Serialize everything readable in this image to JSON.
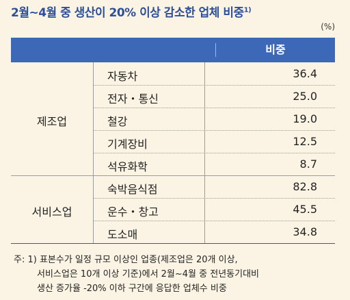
{
  "title": "2월~4월 중 생산이 20% 이상 감소한 업체 비중",
  "title_sup": "1)",
  "unit": "(%)",
  "chart_data": {
    "type": "table",
    "columns": [
      "",
      "",
      "비중"
    ],
    "groups": [
      {
        "name": "제조업",
        "rows": [
          {
            "category": "자동차",
            "value": "36.4"
          },
          {
            "category": "전자・통신",
            "value": "25.0"
          },
          {
            "category": "철강",
            "value": "19.0"
          },
          {
            "category": "기계장비",
            "value": "12.5"
          },
          {
            "category": "석유화학",
            "value": "8.7"
          }
        ]
      },
      {
        "name": "서비스업",
        "rows": [
          {
            "category": "숙박음식점",
            "value": "82.8"
          },
          {
            "category": "운수・창고",
            "value": "45.5"
          },
          {
            "category": "도소매",
            "value": "34.8"
          }
        ]
      }
    ]
  },
  "notes": [
    "주: 1) 표본수가 일정 규모 이상인 업종(제조업은 20개 이상,",
    "서비스업은 10개 이상 기준)에서 2월~4월 중 전년동기대비",
    "생산 증가율 -20% 이하 구간에 응답한 업체수 비중"
  ]
}
